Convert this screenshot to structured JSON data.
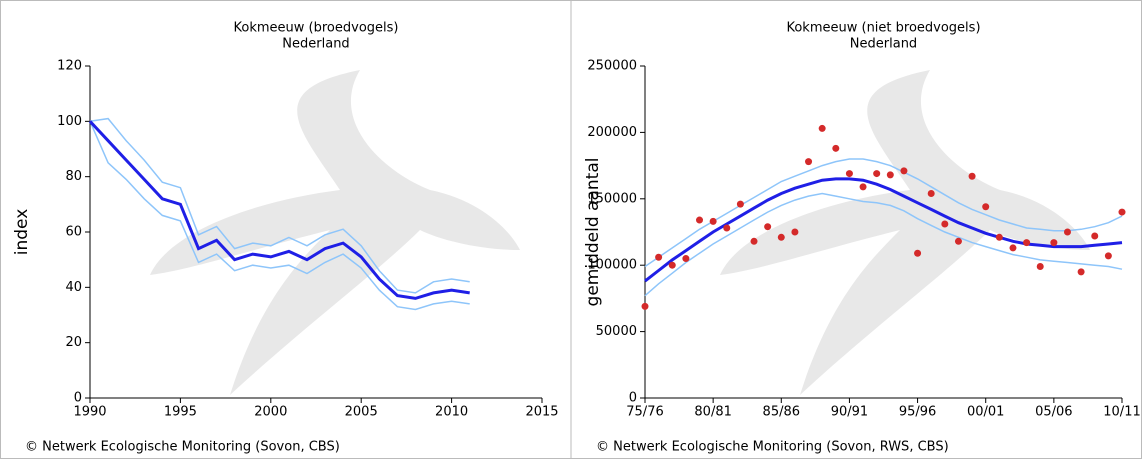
{
  "chart_data": [
    {
      "type": "line",
      "title": "Kokmeeuw (broedvogels)",
      "subtitle": "Nederland",
      "ylabel": "index",
      "footer": "© Netwerk Ecologische Monitoring (Sovon, CBS)",
      "x": [
        1990,
        1991,
        1992,
        1993,
        1994,
        1995,
        1996,
        1997,
        1998,
        1999,
        2000,
        2001,
        2002,
        2003,
        2004,
        2005,
        2006,
        2007,
        2008,
        2009,
        2010,
        2011
      ],
      "xlim": [
        1990,
        2015
      ],
      "xticks": [
        1990,
        1995,
        2000,
        2005,
        2010,
        2015
      ],
      "ylim": [
        0,
        120
      ],
      "yticks": [
        0,
        20,
        40,
        60,
        80,
        100,
        120
      ],
      "series": [
        {
          "color": "#8ec5fa",
          "values": [
            100,
            101,
            93,
            86,
            78,
            76,
            59,
            62,
            54,
            56,
            55,
            58,
            55,
            59,
            61,
            55,
            46,
            39,
            38,
            42,
            43,
            42
          ]
        },
        {
          "color": "#8ec5fa",
          "values": [
            100,
            85,
            79,
            72,
            66,
            64,
            49,
            52,
            46,
            48,
            47,
            48,
            45,
            49,
            52,
            47,
            39,
            33,
            32,
            34,
            35,
            34
          ]
        },
        {
          "color": "#1f1fe6",
          "values": [
            100,
            93,
            86,
            79,
            72,
            70,
            54,
            57,
            50,
            52,
            51,
            53,
            50,
            54,
            56,
            51,
            43,
            37,
            36,
            38,
            39,
            38
          ]
        }
      ]
    },
    {
      "type": "line",
      "title": "Kokmeeuw (niet broedvogels)",
      "subtitle": "Nederland",
      "ylabel": "gemiddeld aantal",
      "footer": "© Netwerk Ecologische Monitoring (Sovon, RWS, CBS)",
      "categories": [
        "75/76",
        null,
        null,
        null,
        null,
        "80/81",
        null,
        null,
        null,
        null,
        "85/86",
        null,
        null,
        null,
        null,
        "90/91",
        null,
        null,
        null,
        null,
        "95/96",
        null,
        null,
        null,
        null,
        "00/01",
        null,
        null,
        null,
        null,
        "05/06",
        null,
        null,
        null,
        null,
        "10/11"
      ],
      "ylim": [
        0,
        250000
      ],
      "yticks": [
        0,
        50000,
        100000,
        150000,
        200000,
        250000
      ],
      "series": [
        {
          "color": "#8ec5fa",
          "values": [
            99000,
            106000,
            113000,
            120000,
            127000,
            133000,
            139000,
            145000,
            151000,
            157000,
            163000,
            167000,
            171000,
            175000,
            178000,
            180000,
            180000,
            178000,
            175000,
            170000,
            165000,
            159000,
            153000,
            147000,
            142000,
            138000,
            134000,
            131000,
            128000,
            127000,
            126000,
            126000,
            127000,
            129000,
            132000,
            137000
          ]
        },
        {
          "color": "#8ec5fa",
          "values": [
            77000,
            86000,
            94000,
            102000,
            109000,
            116000,
            122000,
            128000,
            134000,
            140000,
            145000,
            149000,
            152000,
            154000,
            152000,
            150000,
            148000,
            147000,
            145000,
            141000,
            135000,
            130000,
            125000,
            121000,
            117000,
            114000,
            111000,
            108000,
            106000,
            104000,
            103000,
            102000,
            101000,
            100000,
            99000,
            97000
          ]
        },
        {
          "color": "#1f1fe6",
          "values": [
            88000,
            96000,
            104000,
            111000,
            118000,
            125000,
            131000,
            137000,
            143000,
            149000,
            154000,
            158000,
            161000,
            164000,
            165000,
            165000,
            164000,
            161000,
            157000,
            152000,
            147000,
            142000,
            137000,
            132000,
            128000,
            124000,
            121000,
            118000,
            116000,
            115000,
            114000,
            114000,
            114000,
            115000,
            116000,
            117000
          ]
        },
        {
          "type": "scatter",
          "color": "#d42a2a",
          "values": [
            69000,
            106000,
            100000,
            105000,
            134000,
            133000,
            128000,
            146000,
            118000,
            129000,
            121000,
            125000,
            178000,
            203000,
            188000,
            169000,
            159000,
            169000,
            168000,
            171000,
            109000,
            154000,
            131000,
            118000,
            167000,
            144000,
            121000,
            113000,
            117000,
            99000,
            117000,
            125000,
            95000,
            122000,
            107000,
            140000
          ]
        }
      ]
    }
  ]
}
